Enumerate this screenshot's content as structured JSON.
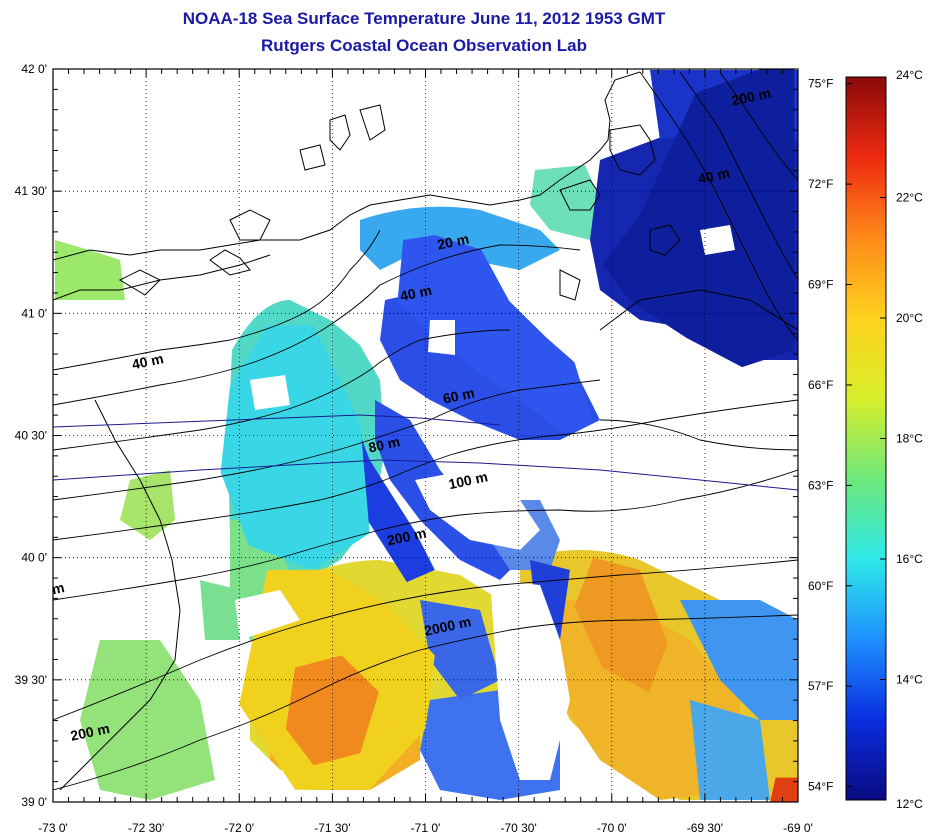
{
  "title": "NOAA-18 Sea Surface Temperature June 11, 2012 1953 GMT",
  "subtitle": "Rutgers Coastal Ocean Observation Lab",
  "map": {
    "lat_labels": [
      "42 0'",
      "41 30'",
      "41 0'",
      "40 30'",
      "40 0'",
      "39 30'",
      "39 0'"
    ],
    "lon_labels": [
      "-73 0'",
      "-72 30'",
      "-72 0'",
      "-71 30'",
      "-71 0'",
      "-70 30'",
      "-70 0'",
      "-69 30'",
      "-69 0'"
    ],
    "lat_range": [
      39.0,
      42.0
    ],
    "lon_range": [
      -73.0,
      -69.0
    ],
    "depth_labels": [
      {
        "text": "20 m",
        "lon": -70.93,
        "lat": 41.26
      },
      {
        "text": "40 m",
        "lon": -71.13,
        "lat": 41.05
      },
      {
        "text": "40 m",
        "lon": -72.57,
        "lat": 40.77
      },
      {
        "text": "40 m",
        "lon": -69.53,
        "lat": 41.53
      },
      {
        "text": "60 m",
        "lon": -70.9,
        "lat": 40.63
      },
      {
        "text": "80 m",
        "lon": -71.3,
        "lat": 40.43
      },
      {
        "text": "100 m",
        "lon": -70.87,
        "lat": 40.28
      },
      {
        "text": "200 m",
        "lon": -71.2,
        "lat": 40.05
      },
      {
        "text": "2000 m",
        "lon": -71.0,
        "lat": 39.68
      },
      {
        "text": "200 m",
        "lon": -72.9,
        "lat": 39.25
      },
      {
        "text": "200 m",
        "lon": -69.35,
        "lat": 41.85
      },
      {
        "text": "m",
        "lon": -73.0,
        "lat": 39.85
      }
    ],
    "temperature_regions": [
      {
        "color": "#1c3ee0",
        "lons": [
          -71.6,
          -71.45,
          -71.3,
          -71.05,
          -70.95,
          -71.1,
          -71.35,
          -71.5
        ],
        "lats": [
          40.95,
          40.7,
          40.4,
          40.1,
          39.95,
          39.9,
          40.2,
          40.6
        ]
      },
      {
        "color": "#2e55ee",
        "lons": [
          -71.12,
          -70.95,
          -70.7,
          -70.55,
          -70.35,
          -70.2,
          -70.1,
          -70.25,
          -70.45,
          -70.7,
          -70.95,
          -71.15
        ],
        "lats": [
          41.3,
          41.32,
          41.26,
          41.05,
          40.9,
          40.8,
          40.55,
          40.5,
          40.62,
          40.75,
          40.9,
          41.05
        ]
      },
      {
        "color": "#0d1f9c",
        "lons": [
          -69.85,
          -69.55,
          -69.2,
          -69.02,
          -69.02,
          -69.3,
          -69.6,
          -69.9,
          -70.05
        ],
        "lats": [
          41.4,
          41.9,
          42.0,
          42.0,
          40.85,
          40.78,
          40.9,
          41.05,
          41.2
        ]
      },
      {
        "color": "#39d6e6",
        "lons": [
          -71.85,
          -71.6,
          -71.35,
          -71.3,
          -71.6,
          -71.95,
          -72.1,
          -72.05
        ],
        "lats": [
          40.95,
          40.95,
          40.55,
          40.1,
          39.95,
          40.05,
          40.35,
          40.7
        ]
      },
      {
        "color": "#f0d21e",
        "lons": [
          -71.85,
          -71.5,
          -71.2,
          -70.95,
          -71.0,
          -71.3,
          -71.7,
          -72.0
        ],
        "lats": [
          39.95,
          39.95,
          39.8,
          39.6,
          39.3,
          39.05,
          39.05,
          39.4
        ]
      },
      {
        "color": "#f08a1e",
        "lons": [
          -71.7,
          -71.45,
          -71.25,
          -71.35,
          -71.6,
          -71.75
        ],
        "lats": [
          39.55,
          39.6,
          39.45,
          39.2,
          39.15,
          39.3
        ]
      },
      {
        "color": "#ee9a22",
        "lons": [
          -70.1,
          -69.85,
          -69.7,
          -69.8,
          -70.05,
          -70.2
        ],
        "lats": [
          40.0,
          39.95,
          39.65,
          39.45,
          39.55,
          39.8
        ]
      },
      {
        "color": "#e04010",
        "lons": [
          -69.12,
          -69.0,
          -69.0,
          -69.15
        ],
        "lats": [
          39.1,
          39.1,
          39.0,
          39.0
        ]
      }
    ]
  },
  "colorbar": {
    "celsius_labels": [
      "24°C",
      "22°C",
      "20°C",
      "18°C",
      "16°C",
      "14°C",
      "12°C"
    ],
    "fahrenheit_labels": [
      "75°F",
      "72°F",
      "69°F",
      "66°F",
      "63°F",
      "60°F",
      "57°F",
      "54°F"
    ],
    "celsius_values": [
      24,
      22,
      20,
      18,
      16,
      14,
      12
    ],
    "fahrenheit_values": [
      75,
      72,
      69,
      66,
      63,
      60,
      57,
      54
    ],
    "range_c": [
      12,
      24
    ],
    "colors": [
      "#0a0a80",
      "#0a2ee0",
      "#1e90ff",
      "#2ee8e8",
      "#6ee87a",
      "#d8ee2a",
      "#ffd21e",
      "#ff8a1a",
      "#ee2a10",
      "#8a0a0a"
    ]
  }
}
